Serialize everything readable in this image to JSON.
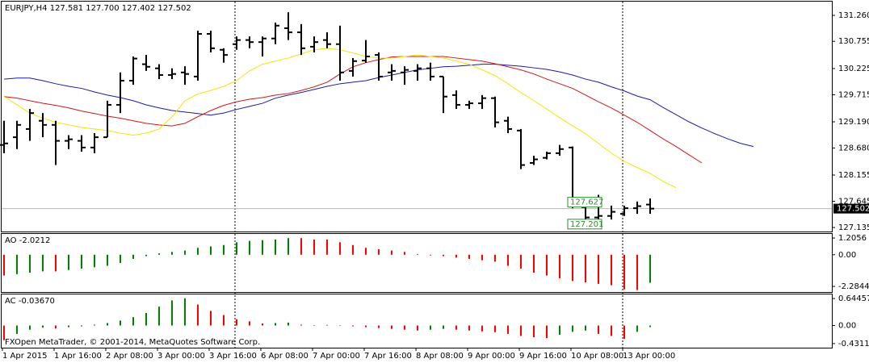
{
  "chart_data": [
    {
      "type": "ohlc",
      "title": "EURJPY,H4",
      "quote": [
        {
          "value": 127.581,
          "label": "127.581"
        },
        {
          "value": 127.7,
          "label": "127.700"
        },
        {
          "value": 127.402,
          "label": "127.402"
        },
        {
          "value": 127.502,
          "label": "127.502"
        }
      ],
      "categories": [
        "1 Apr 2015",
        null,
        null,
        null,
        "1 Apr 16:00",
        null,
        null,
        null,
        "2 Apr 08:00",
        null,
        null,
        null,
        "3 Apr 00:00",
        null,
        null,
        null,
        "3 Apr 16:00",
        null,
        null,
        null,
        "6 Apr 08:00",
        null,
        null,
        null,
        "7 Apr 00:00",
        null,
        null,
        null,
        "7 Apr 16:00",
        null,
        null,
        null,
        "8 Apr 08:00",
        null,
        null,
        null,
        "9 Apr 00:00",
        null,
        null,
        null,
        "9 Apr 16:00",
        null,
        null,
        null,
        "10 Apr 08:00",
        null,
        null,
        null,
        "13 Apr 00:00",
        null,
        null,
        null,
        null,
        null,
        null,
        null,
        null,
        null,
        null
      ],
      "open": [
        128.74,
        128.89,
        129.05,
        129.21,
        129.13,
        128.82,
        128.82,
        128.69,
        128.89,
        129.52,
        129.99,
        130.31,
        130.23,
        130.1,
        130.15,
        130.07,
        130.9,
        130.59,
        130.7,
        130.78,
        130.74,
        130.81,
        131.01,
        130.93,
        130.65,
        130.78,
        130.7,
        130.18,
        130.38,
        130.49,
        130.15,
        130.15,
        130.18,
        130.23,
        130.07,
        129.71,
        129.52,
        129.55,
        129.65,
        129.21,
        129.02,
        128.39,
        128.49,
        128.58,
        128.69,
        127.53,
        127.33,
        127.36,
        127.4,
        127.51,
        127.581,
        null,
        null,
        null,
        null,
        null,
        null,
        null,
        null
      ],
      "high": [
        129.21,
        129.21,
        129.44,
        129.36,
        129.21,
        128.93,
        128.93,
        128.97,
        129.6,
        130.15,
        130.46,
        130.49,
        130.31,
        130.23,
        130.27,
        130.96,
        130.96,
        130.62,
        130.85,
        130.85,
        130.85,
        131.12,
        131.32,
        131.09,
        130.85,
        130.93,
        131.06,
        130.43,
        130.78,
        130.54,
        130.31,
        130.27,
        130.31,
        130.34,
        130.07,
        129.8,
        129.6,
        129.71,
        129.68,
        129.29,
        129.05,
        128.53,
        128.61,
        128.74,
        128.71,
        127.56,
        127.77,
        127.56,
        127.56,
        127.64,
        127.7,
        null,
        null,
        null,
        null,
        null,
        null,
        null,
        null
      ],
      "low": [
        128.58,
        128.66,
        128.82,
        128.89,
        128.35,
        128.66,
        128.61,
        128.58,
        128.89,
        129.36,
        129.91,
        130.18,
        130.02,
        130.02,
        129.91,
        129.99,
        130.54,
        130.34,
        130.59,
        130.62,
        130.46,
        130.7,
        130.78,
        130.49,
        130.54,
        130.62,
        129.99,
        130.07,
        130.34,
        129.99,
        129.99,
        129.91,
        129.99,
        129.99,
        129.36,
        129.44,
        129.44,
        129.44,
        129.08,
        128.97,
        128.27,
        128.35,
        128.46,
        128.53,
        127.51,
        127.29,
        127.29,
        127.29,
        127.36,
        127.4,
        127.402,
        null,
        null,
        null,
        null,
        null,
        null,
        null,
        null
      ],
      "close": [
        128.77,
        129.13,
        129.36,
        129.13,
        128.82,
        128.85,
        128.69,
        128.89,
        129.52,
        129.99,
        130.42,
        130.26,
        130.1,
        130.12,
        130.12,
        130.9,
        130.62,
        130.49,
        130.78,
        130.74,
        130.81,
        131.06,
        130.93,
        130.62,
        130.74,
        130.7,
        130.15,
        130.37,
        130.46,
        130.07,
        130.18,
        130.2,
        130.23,
        130.07,
        129.68,
        129.52,
        129.55,
        129.65,
        129.18,
        129.05,
        128.35,
        128.46,
        128.58,
        128.66,
        127.56,
        127.33,
        127.36,
        127.44,
        127.51,
        127.55,
        127.502,
        null,
        null,
        null,
        null,
        null,
        null,
        null,
        null
      ],
      "bar_color": "#000000",
      "series": [
        {
          "color": "#1a1aa6",
          "values": [
            130.02,
            130.04,
            130.04,
            129.99,
            129.93,
            129.88,
            129.84,
            129.77,
            129.71,
            129.66,
            129.6,
            129.52,
            129.46,
            129.41,
            129.38,
            129.35,
            129.32,
            129.36,
            129.43,
            129.49,
            129.55,
            129.65,
            129.71,
            129.76,
            129.82,
            129.88,
            129.93,
            129.96,
            129.99,
            130.05,
            130.1,
            130.15,
            130.2,
            130.23,
            130.26,
            130.27,
            130.29,
            130.31,
            130.31,
            130.29,
            130.27,
            130.24,
            130.21,
            130.16,
            130.1,
            130.02,
            129.96,
            129.87,
            129.79,
            129.69,
            129.62,
            129.47,
            129.33,
            129.19,
            129.07,
            128.96,
            128.86,
            128.77,
            128.71
          ]
        },
        {
          "color": "#d01818",
          "values": [
            129.68,
            129.65,
            129.6,
            129.55,
            129.51,
            129.46,
            129.4,
            129.35,
            129.3,
            129.26,
            129.21,
            129.16,
            129.13,
            129.11,
            129.16,
            129.29,
            129.41,
            129.51,
            129.58,
            129.63,
            129.66,
            129.71,
            129.74,
            129.8,
            129.87,
            129.96,
            130.12,
            130.26,
            130.34,
            130.4,
            130.45,
            130.46,
            130.46,
            130.46,
            130.46,
            130.43,
            130.4,
            130.37,
            130.32,
            130.26,
            130.2,
            130.12,
            130.02,
            129.93,
            129.84,
            129.71,
            129.58,
            129.46,
            129.32,
            129.18,
            129.02,
            128.86,
            128.71,
            128.55,
            128.39,
            null,
            null,
            null,
            null
          ]
        },
        {
          "color": "#f2e40c",
          "values": [
            129.68,
            129.52,
            129.36,
            129.26,
            129.18,
            129.13,
            129.08,
            129.05,
            129.02,
            128.97,
            128.93,
            128.97,
            129.05,
            129.29,
            129.6,
            129.73,
            129.8,
            129.88,
            129.99,
            130.18,
            130.31,
            130.37,
            130.43,
            130.51,
            130.59,
            130.62,
            130.59,
            130.53,
            130.46,
            130.43,
            130.43,
            130.46,
            130.49,
            130.46,
            130.43,
            130.37,
            130.31,
            130.2,
            130.09,
            129.93,
            129.76,
            129.6,
            129.44,
            129.27,
            129.11,
            128.96,
            128.77,
            128.58,
            128.42,
            128.3,
            128.19,
            128.03,
            127.91,
            null,
            null,
            null,
            null,
            null,
            null
          ]
        }
      ],
      "last_price": 127.502,
      "price_labels": [
        127.627,
        127.201
      ],
      "ylim": [
        127.057,
        131.527
      ],
      "yticks": [
        {
          "value": 131.26,
          "label": "131.260"
        },
        130.755,
        130.225,
        129.715,
        {
          "value": 129.19,
          "label": "129.190"
        },
        {
          "value": 128.68,
          "label": "128.680"
        },
        128.155,
        127.645,
        127.135
      ],
      "grid": false,
      "footer": "FXOpen MetaTrader, © 2001-2014, MetaQuotes Software Corp."
    },
    {
      "type": "bar",
      "title": "AO",
      "values": [
        -1.5,
        -1.4,
        -1.3,
        -1.2,
        -1.2,
        -1.1,
        -1.0,
        -0.9,
        -0.8,
        -0.6,
        -0.3,
        -0.1,
        0.1,
        0.2,
        0.3,
        0.5,
        0.6,
        0.7,
        0.9,
        1.0,
        1.05,
        1.1,
        1.2,
        1.2,
        1.1,
        1.1,
        0.9,
        0.7,
        0.5,
        0.4,
        0.3,
        0.2,
        0.05,
        -0.05,
        -0.1,
        -0.2,
        -0.3,
        -0.4,
        -0.5,
        -0.8,
        -1.0,
        -1.3,
        -1.5,
        -1.7,
        -1.9,
        -2.0,
        -2.1,
        -2.2,
        -2.5,
        -2.55,
        -2.0212
      ],
      "up_color": "#008000",
      "down_color": "#ff0000",
      "ylim": [
        -2.69,
        1.5
      ],
      "yticks": [
        1.2056,
        {
          "value": 0,
          "label": "0.00"
        },
        -2.2844
      ]
    },
    {
      "type": "bar",
      "title": "AC",
      "header_value": {
        "value": -0.0367,
        "label": "-0.03670"
      },
      "values": [
        -0.35,
        -0.2,
        -0.1,
        -0.05,
        -0.07,
        -0.04,
        -0.02,
        0.02,
        0.06,
        0.12,
        0.2,
        0.3,
        0.45,
        0.6,
        0.65,
        0.5,
        0.35,
        0.25,
        0.15,
        0.1,
        0.05,
        0.06,
        0.07,
        0.02,
        0.01,
        0.015,
        -0.01,
        -0.02,
        -0.04,
        -0.06,
        -0.08,
        -0.1,
        -0.12,
        -0.1,
        -0.08,
        -0.1,
        -0.12,
        -0.14,
        -0.16,
        -0.2,
        -0.25,
        -0.28,
        -0.3,
        -0.22,
        -0.15,
        -0.12,
        -0.2,
        -0.25,
        -0.32,
        -0.15,
        -0.0367
      ],
      "up_color": "#008000",
      "down_color": "#ff0000",
      "ylim": [
        -0.529,
        0.742
      ],
      "yticks": [
        0.64457,
        {
          "value": 0,
          "label": "0.00"
        },
        -0.43118
      ]
    }
  ]
}
